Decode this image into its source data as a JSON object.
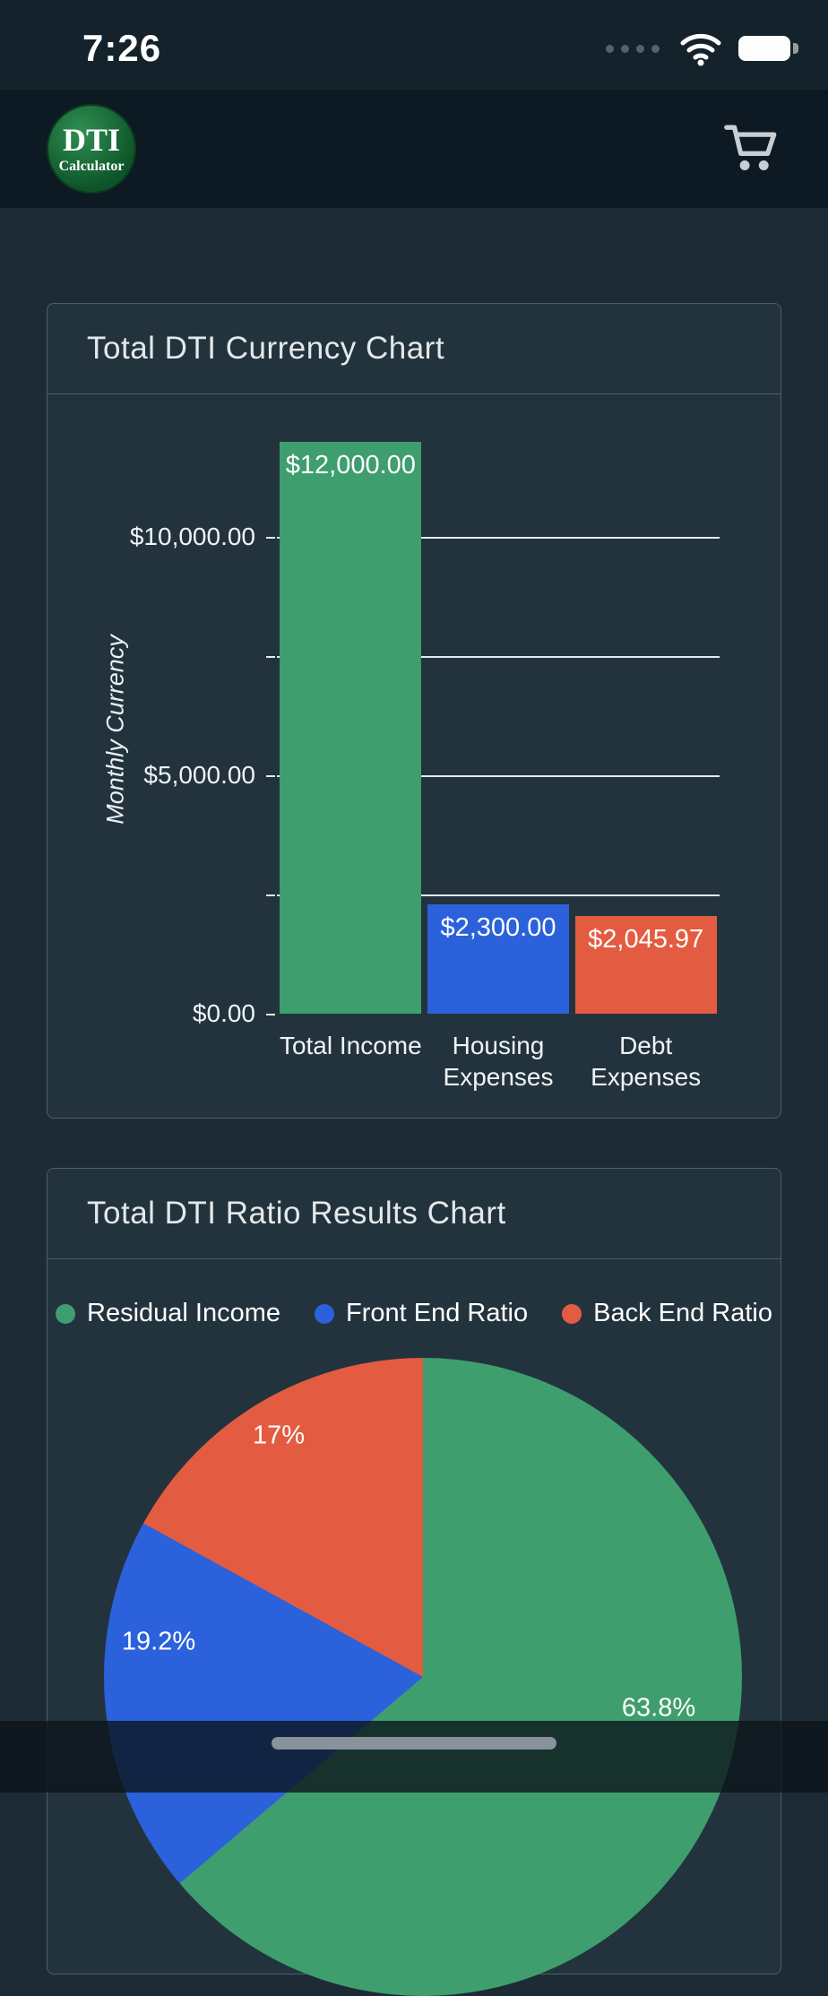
{
  "status_bar": {
    "time": "7:26"
  },
  "header": {
    "logo_title": "DTI",
    "logo_subtitle": "Calculator",
    "cart_icon": "shopping-cart"
  },
  "colors": {
    "green": "#3f9e6e",
    "blue": "#2b62db",
    "red": "#e35c41",
    "page_bg": "#1c2b35",
    "card_bg": "#22333e",
    "card_border": "#4e5e67"
  },
  "chart_data": [
    {
      "type": "bar",
      "title": "Total DTI Currency Chart",
      "categories": [
        "Total Income",
        "Housing\nExpenses",
        "Debt\nExpenses"
      ],
      "values": [
        12000,
        2300,
        2045.97
      ],
      "value_labels": [
        "$12,000.00",
        "$2,300.00",
        "$2,045.97"
      ],
      "colors": [
        "#3f9e6e",
        "#2b62db",
        "#e35c41"
      ],
      "ylabel": "Monthly Currency",
      "ylim": [
        0,
        12000
      ],
      "yticks": [
        {
          "value": 0,
          "label": "$0.00"
        },
        {
          "value": 5000,
          "label": "$5,000.00"
        },
        {
          "value": 10000,
          "label": "$10,000.00"
        }
      ],
      "gridline_values": [
        2500,
        5000,
        7500,
        10000
      ],
      "grid": true,
      "legend": false
    },
    {
      "type": "pie",
      "title": "Total DTI Ratio Results Chart",
      "labels": [
        "Residual Income",
        "Front End Ratio",
        "Back End Ratio"
      ],
      "values": [
        63.8,
        19.2,
        17
      ],
      "value_labels": [
        "63.8%",
        "19.2%",
        "17%"
      ],
      "colors": [
        "#3f9e6e",
        "#2b62db",
        "#e35c41"
      ],
      "legend_position": "top"
    }
  ]
}
